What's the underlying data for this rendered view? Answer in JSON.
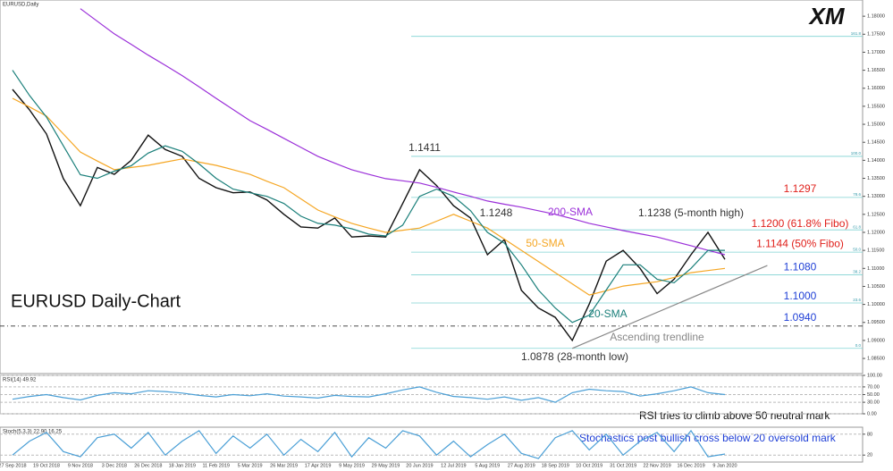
{
  "chart_data": [
    {
      "type": "line",
      "title": "EURUSD,Daily",
      "headline": "EURUSD Daily-Chart",
      "logo": "XM",
      "categories": [
        "27 Sep 2018",
        null,
        "19 Oct 2018",
        null,
        "9 Nov 2018",
        null,
        "3 Dec 2018",
        null,
        "26 Dec 2018",
        null,
        "18 Jan 2019",
        null,
        "11 Feb 2019",
        null,
        "5 Mar 2019",
        null,
        "26 Mar 2019",
        null,
        "17 Apr 2019",
        null,
        "9 May 2019",
        null,
        "29 May 2019",
        null,
        "20 Jun 2019",
        null,
        "12 Jul 2019",
        null,
        "5 Aug 2019",
        null,
        "27 Aug 2019",
        null,
        "18 Sep 2019",
        null,
        "10 Oct 2019",
        null,
        "31 Oct 2019",
        null,
        "22 Nov 2019",
        null,
        "16 Dec 2019",
        null,
        "9 Jan 2020"
      ],
      "series": [
        {
          "name": "EURUSD",
          "color": "#111111",
          "values": [
            1.1597,
            1.154,
            1.1473,
            1.1349,
            1.1274,
            1.138,
            1.1361,
            1.14,
            1.147,
            1.143,
            1.1411,
            1.135,
            1.1324,
            1.131,
            1.1312,
            1.129,
            1.125,
            1.1215,
            1.1212,
            1.124,
            1.1187,
            1.119,
            1.1187,
            1.128,
            1.1374,
            1.133,
            1.1274,
            1.124,
            1.1138,
            1.118,
            1.1039,
            1.099,
            1.0964,
            1.09,
            1.1001,
            1.112,
            1.115,
            1.11,
            1.103,
            1.107,
            1.1138,
            1.12,
            1.1125
          ]
        },
        {
          "name": "200-SMA",
          "color": "#9b30d9",
          "values": [
            null,
            null,
            null,
            null,
            1.1821,
            1.1786,
            1.1751,
            1.1722,
            1.1692,
            1.1664,
            1.1635,
            1.1604,
            1.1572,
            1.1541,
            1.151,
            1.1486,
            1.1461,
            1.1436,
            1.1411,
            1.1392,
            1.1374,
            1.1361,
            1.1349,
            1.1343,
            1.1337,
            1.1325,
            1.1312,
            1.13,
            1.1287,
            1.1278,
            1.127,
            1.126,
            1.125,
            1.1238,
            1.1225,
            1.1215,
            1.1205,
            1.1196,
            1.1187,
            1.1175,
            1.1163,
            1.115,
            1.1138
          ]
        },
        {
          "name": "50-SMA",
          "color": "#f5a623",
          "values": [
            1.1572,
            1.1548,
            1.1523,
            1.1473,
            1.1423,
            1.1398,
            1.1374,
            1.138,
            1.1386,
            1.1395,
            1.1404,
            1.1395,
            1.1386,
            1.1374,
            1.1361,
            1.1342,
            1.1324,
            1.1293,
            1.1262,
            1.1243,
            1.1225,
            1.1212,
            1.12,
            1.1206,
            1.1212,
            1.1231,
            1.125,
            1.1231,
            1.1212,
            1.1181,
            1.115,
            1.1119,
            1.1088,
            1.1057,
            1.1026,
            1.1038,
            1.1051,
            1.1057,
            1.1063,
            1.1075,
            1.1088,
            1.1094,
            1.11
          ]
        },
        {
          "name": "20-SMA",
          "color": "#1a7f7a",
          "values": [
            1.165,
            1.158,
            1.152,
            1.144,
            1.136,
            1.135,
            1.137,
            1.1385,
            1.142,
            1.144,
            1.1425,
            1.139,
            1.135,
            1.132,
            1.131,
            1.13,
            1.128,
            1.1245,
            1.1225,
            1.122,
            1.121,
            1.1195,
            1.119,
            1.122,
            1.13,
            1.132,
            1.13,
            1.126,
            1.12,
            1.117,
            1.111,
            1.104,
            1.099,
            1.095,
            1.097,
            1.104,
            1.111,
            1.111,
            1.107,
            1.106,
            1.11,
            1.115,
            1.115
          ]
        }
      ],
      "ylim": [
        1.0808,
        1.1845
      ],
      "yticks": [
        {
          "value": 1.085,
          "label": "1.08500"
        },
        {
          "value": 1.09,
          "label": "1.09000"
        },
        {
          "value": 1.095,
          "label": "1.09500"
        },
        {
          "value": 1.1,
          "label": "1.10000"
        },
        {
          "value": 1.105,
          "label": "1.10500"
        },
        {
          "value": 1.11,
          "label": "1.11000"
        },
        {
          "value": 1.115,
          "label": "1.11500"
        },
        {
          "value": 1.12,
          "label": "1.12000"
        },
        {
          "value": 1.125,
          "label": "1.12500"
        },
        {
          "value": 1.13,
          "label": "1.13000"
        },
        {
          "value": 1.135,
          "label": "1.13500"
        },
        {
          "value": 1.14,
          "label": "1.14000"
        },
        {
          "value": 1.145,
          "label": "1.14500"
        },
        {
          "value": 1.15,
          "label": "1.15000"
        },
        {
          "value": 1.155,
          "label": "1.15500"
        },
        {
          "value": 1.16,
          "label": "1.16000"
        },
        {
          "value": 1.165,
          "label": "1.16500"
        },
        {
          "value": 1.17,
          "label": "1.17000"
        },
        {
          "value": 1.175,
          "label": "1.17500"
        },
        {
          "value": 1.18,
          "label": "1.18000"
        }
      ],
      "fib_levels": [
        {
          "value": 1.1744,
          "label": "161.8"
        },
        {
          "value": 1.1411,
          "label": "100.0"
        },
        {
          "value": 1.1297,
          "label": "78.6"
        },
        {
          "value": 1.1207,
          "label": "61.8"
        },
        {
          "value": 1.1145,
          "label": "50.0"
        },
        {
          "value": 1.1082,
          "label": "38.2"
        },
        {
          "value": 1.1004,
          "label": "23.6"
        },
        {
          "value": 1.0878,
          "label": "0.0"
        }
      ],
      "key_levels": [
        {
          "value": 1.1297,
          "label": "1.1297",
          "color": "#e0201b"
        },
        {
          "value": 1.12,
          "label": "1.1200 (61.8% Fibo)",
          "color": "#e0201b"
        },
        {
          "value": 1.1144,
          "label": "1.1144 (50% Fibo)",
          "color": "#e0201b"
        },
        {
          "value": 1.108,
          "label": "1.1080",
          "color": "#1f3fd6"
        },
        {
          "value": 1.1,
          "label": "1.1000",
          "color": "#1f3fd6"
        },
        {
          "value": 1.094,
          "label": "1.0940",
          "color": "#1f3fd6"
        }
      ],
      "trendline": [
        1.0878,
        1.1108
      ],
      "annotations": [
        "1.1411",
        "1.1248",
        "1.1238 (5-month high)",
        "1.0878 (28-month low)",
        "200-SMA",
        "50-SMA",
        "20-SMA",
        "Ascending trendline"
      ]
    },
    {
      "type": "line",
      "title": "RSI(14) 49.92",
      "note": "RSI tries to climb above 50 neutral mark",
      "series": [
        {
          "name": "RSI",
          "color": "#4a9fd6",
          "values": [
            38,
            45,
            50,
            42,
            36,
            48,
            55,
            52,
            60,
            58,
            54,
            48,
            44,
            50,
            47,
            52,
            46,
            44,
            41,
            48,
            45,
            44,
            52,
            62,
            70,
            56,
            45,
            42,
            38,
            44,
            35,
            42,
            30,
            55,
            64,
            60,
            58,
            46,
            52,
            60,
            70,
            55,
            50
          ]
        }
      ],
      "ylim": [
        0,
        100
      ],
      "yticks": [
        {
          "value": 0,
          "label": "0.00"
        },
        {
          "value": 30,
          "label": "30.00"
        },
        {
          "value": 50,
          "label": "50.00"
        },
        {
          "value": 70,
          "label": "70.00"
        },
        {
          "value": 100,
          "label": "100.00"
        }
      ]
    },
    {
      "type": "line",
      "title": "Stoch(5,3,3) 22.90 16.25",
      "note": "Stochastics post bullish cross below 20 oversold mark",
      "series": [
        {
          "name": "Stoch",
          "color": "#4a9fd6",
          "values": [
            20,
            60,
            85,
            30,
            15,
            70,
            80,
            40,
            85,
            20,
            60,
            90,
            25,
            75,
            40,
            80,
            20,
            65,
            30,
            85,
            15,
            70,
            40,
            90,
            75,
            20,
            60,
            15,
            50,
            80,
            25,
            10,
            70,
            90,
            35,
            80,
            20,
            60,
            85,
            30,
            90,
            15,
            23
          ]
        }
      ],
      "ylim": [
        0,
        100
      ],
      "yticks": [
        20,
        80
      ]
    }
  ]
}
